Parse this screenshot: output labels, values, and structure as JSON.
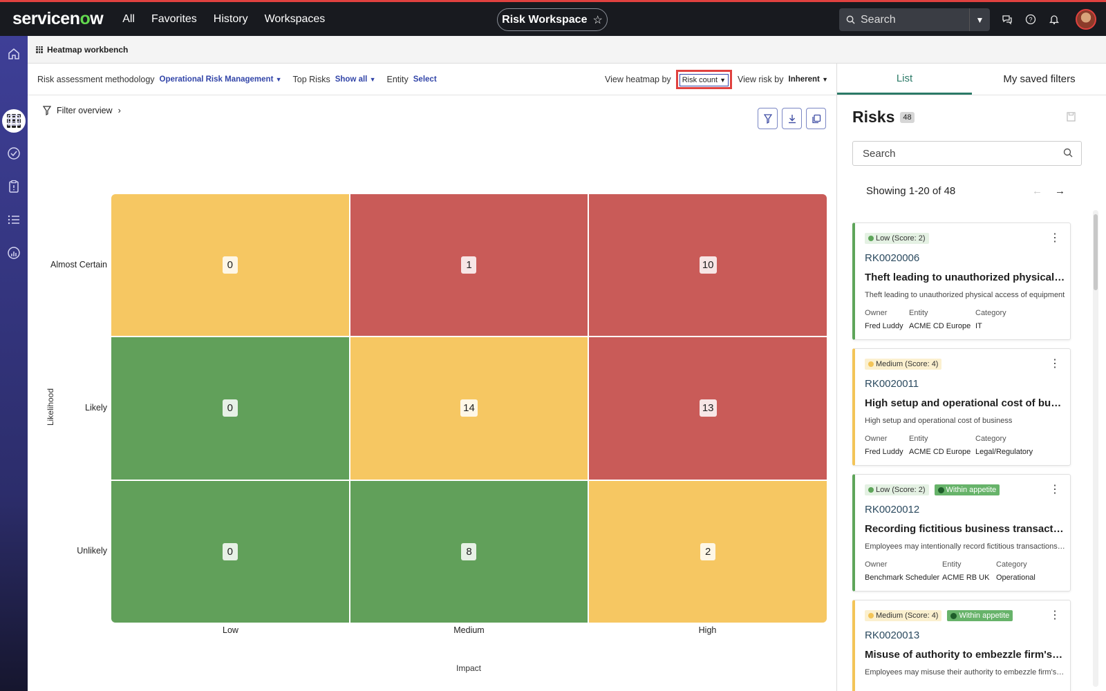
{
  "topbar": {
    "logo_pre": "servicen",
    "logo_o": "o",
    "logo_post": "w",
    "nav": [
      "All",
      "Favorites",
      "History",
      "Workspaces"
    ],
    "workspace_title": "Risk Workspace",
    "search_placeholder": "Search"
  },
  "subheader": {
    "title": "Heatmap workbench"
  },
  "filterbar": {
    "methodology_label": "Risk assessment methodology",
    "methodology_value": "Operational Risk Management",
    "toprisks_label": "Top Risks",
    "toprisks_value": "Show all",
    "entity_label": "Entity",
    "entity_value": "Select",
    "viewby_label": "View heatmap by",
    "viewby_value": "Risk count",
    "riskby_label": "View risk by",
    "riskby_value": "Inherent"
  },
  "filter_overview": "Filter overview",
  "chart_data": {
    "type": "heatmap",
    "xlabel": "Impact",
    "ylabel": "Likelihood",
    "x_categories": [
      "Low",
      "Medium",
      "High"
    ],
    "y_categories": [
      "Almost Certain",
      "Likely",
      "Unlikely"
    ],
    "values": [
      [
        0,
        1,
        10
      ],
      [
        0,
        14,
        13
      ],
      [
        0,
        8,
        2
      ]
    ],
    "cell_colors": [
      [
        "#f6c762",
        "#c95b58",
        "#c95b58"
      ],
      [
        "#61a05a",
        "#f6c762",
        "#c95b58"
      ],
      [
        "#61a05a",
        "#61a05a",
        "#f6c762"
      ]
    ]
  },
  "panel": {
    "tabs": [
      "List",
      "My saved filters"
    ],
    "title": "Risks",
    "count": "48",
    "search_placeholder": "Search",
    "showing": "Showing 1-20 of 48",
    "owner_label": "Owner",
    "entity_label": "Entity",
    "category_label": "Category",
    "cards": [
      {
        "level": "low",
        "badge": "Low (Score: 2)",
        "appetite": "",
        "id": "RK0020006",
        "title": "Theft leading to unauthorized physical access of equipment",
        "desc": "Theft leading to unauthorized physical access of equipment",
        "owner": "Fred Luddy",
        "entity": "ACME CD Europe",
        "category": "IT"
      },
      {
        "level": "med",
        "badge": "Medium (Score: 4)",
        "appetite": "",
        "id": "RK0020011",
        "title": "High setup and operational cost of business",
        "desc": "High setup and operational cost of business",
        "owner": "Fred Luddy",
        "entity": "ACME CD Europe",
        "category": "Legal/Regulatory"
      },
      {
        "level": "low",
        "badge": "Low (Score: 2)",
        "appetite": "Within appetite",
        "id": "RK0020012",
        "title": "Recording fictitious business transactions for personal gain",
        "desc": "Employees may intentionally record fictitious transactions, ...",
        "owner": "Benchmark Scheduler",
        "entity": "ACME RB UK",
        "category": "Operational"
      },
      {
        "level": "med",
        "badge": "Medium (Score: 4)",
        "appetite": "Within appetite",
        "id": "RK0020013",
        "title": "Misuse of authority to embezzle firm's assets",
        "desc": "Employees may misuse their authority to embezzle firm's assets",
        "owner": "",
        "entity": "",
        "category": ""
      }
    ]
  }
}
